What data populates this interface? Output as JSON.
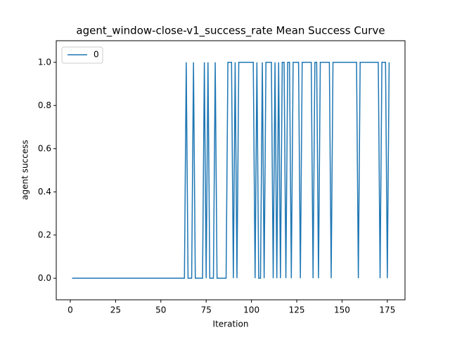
{
  "chart_data": {
    "type": "line",
    "title": "agent_window-close-v1_success_rate Mean Success Curve",
    "x_label": "Iteration",
    "y_label": "agent success",
    "x": [
      1,
      2,
      3,
      4,
      5,
      6,
      7,
      8,
      9,
      10,
      11,
      12,
      13,
      14,
      15,
      16,
      17,
      18,
      19,
      20,
      21,
      22,
      23,
      24,
      25,
      26,
      27,
      28,
      29,
      30,
      31,
      32,
      33,
      34,
      35,
      36,
      37,
      38,
      39,
      40,
      41,
      42,
      43,
      44,
      45,
      46,
      47,
      48,
      49,
      50,
      51,
      52,
      53,
      54,
      55,
      56,
      57,
      58,
      59,
      60,
      61,
      62,
      63,
      64,
      65,
      66,
      67,
      68,
      69,
      70,
      71,
      72,
      73,
      74,
      75,
      76,
      77,
      78,
      79,
      80,
      81,
      82,
      83,
      84,
      85,
      86,
      87,
      88,
      89,
      90,
      91,
      92,
      93,
      94,
      95,
      96,
      97,
      98,
      99,
      100,
      101,
      102,
      103,
      104,
      105,
      106,
      107,
      108,
      109,
      110,
      111,
      112,
      113,
      114,
      115,
      116,
      117,
      118,
      119,
      120,
      121,
      122,
      123,
      124,
      125,
      126,
      127,
      128,
      129,
      130,
      131,
      132,
      133,
      134,
      135,
      136,
      137,
      138,
      139,
      140,
      141,
      142,
      143,
      144,
      145,
      146,
      147,
      148,
      149,
      150,
      151,
      152,
      153,
      154,
      155,
      156,
      157,
      158,
      159,
      160,
      161,
      162,
      163,
      164,
      165,
      166,
      167,
      168,
      169,
      170,
      171,
      172,
      173,
      174,
      175,
      176
    ],
    "series": [
      {
        "name": "0",
        "color": "#1f77b4",
        "values": [
          0,
          0,
          0,
          0,
          0,
          0,
          0,
          0,
          0,
          0,
          0,
          0,
          0,
          0,
          0,
          0,
          0,
          0,
          0,
          0,
          0,
          0,
          0,
          0,
          0,
          0,
          0,
          0,
          0,
          0,
          0,
          0,
          0,
          0,
          0,
          0,
          0,
          0,
          0,
          0,
          0,
          0,
          0,
          0,
          0,
          0,
          0,
          0,
          0,
          0,
          0,
          0,
          0,
          0,
          0,
          0,
          0,
          0,
          0,
          0,
          0,
          0,
          0,
          1,
          0,
          0,
          0,
          1,
          0,
          0,
          0,
          0,
          0,
          1,
          0,
          1,
          0,
          0,
          0,
          1,
          0,
          0,
          0,
          0,
          0,
          0,
          1,
          1,
          1,
          0,
          1,
          0,
          1,
          1,
          1,
          1,
          1,
          1,
          1,
          1,
          1,
          0,
          1,
          0,
          0,
          1,
          0,
          1,
          1,
          1,
          1,
          0,
          1,
          0,
          1,
          0,
          1,
          1,
          0,
          1,
          1,
          0,
          1,
          1,
          1,
          1,
          0,
          1,
          1,
          1,
          1,
          1,
          1,
          0,
          1,
          1,
          0,
          1,
          1,
          1,
          1,
          1,
          1,
          0,
          1,
          1,
          1,
          1,
          1,
          1,
          1,
          1,
          1,
          1,
          1,
          1,
          1,
          1,
          0,
          1,
          1,
          1,
          1,
          1,
          1,
          1,
          1,
          1,
          1,
          1,
          0,
          1,
          1,
          1,
          0,
          1
        ]
      }
    ],
    "xlim": [
      -7.75,
      184.75
    ],
    "xticks": [
      0,
      25,
      50,
      75,
      100,
      125,
      150,
      175
    ],
    "ylim": [
      -0.1,
      1.1
    ],
    "yticks": [
      {
        "value": 0,
        "label": "0.0"
      },
      {
        "value": 0.2,
        "label": "0.2"
      },
      {
        "value": 0.4,
        "label": "0.4"
      },
      {
        "value": 0.6,
        "label": "0.6"
      },
      {
        "value": 0.8,
        "label": "0.8"
      },
      {
        "value": 1,
        "label": "1.0"
      }
    ],
    "legend": "upper left",
    "grid": false
  }
}
